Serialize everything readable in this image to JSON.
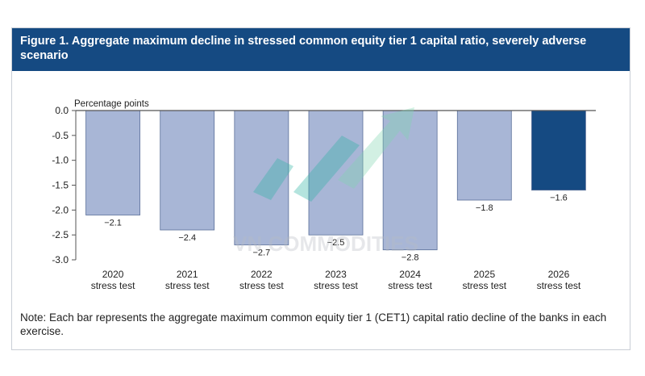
{
  "figure": {
    "title": "Figure 1. Aggregate maximum decline in stressed common equity tier 1 capital ratio, severely adverse scenario",
    "note": "Note: Each bar represents the aggregate maximum common equity tier 1 (CET1) capital ratio decline of the banks in each exercise."
  },
  "watermark": {
    "text": "VN COMMODITIES"
  },
  "chart_data": {
    "type": "bar",
    "title": "Figure 1. Aggregate maximum decline in stressed common equity tier 1 capital ratio, severely adverse scenario",
    "ylabel": "Percentage points",
    "xlabel": "",
    "ylim": [
      -3.0,
      0.0
    ],
    "yticks": [
      "0.0",
      "-0.5",
      "-1.0",
      "-1.5",
      "-2.0",
      "-2.5",
      "-3.0"
    ],
    "categories": [
      "2020",
      "2021",
      "2022",
      "2023",
      "2024",
      "2025",
      "2026"
    ],
    "category_sublabel": "stress test",
    "values": [
      -2.1,
      -2.4,
      -2.7,
      -2.5,
      -2.8,
      -1.8,
      -1.6
    ],
    "value_labels": [
      "−2.1",
      "−2.4",
      "−2.7",
      "−2.5",
      "−2.8",
      "−1.8",
      "−1.6"
    ],
    "colors": {
      "default": "#a8b6d6",
      "highlight": "#154a82",
      "highlight_category": "2026",
      "axis": "#555555",
      "title_bar": "#154a82"
    },
    "grid": false
  }
}
